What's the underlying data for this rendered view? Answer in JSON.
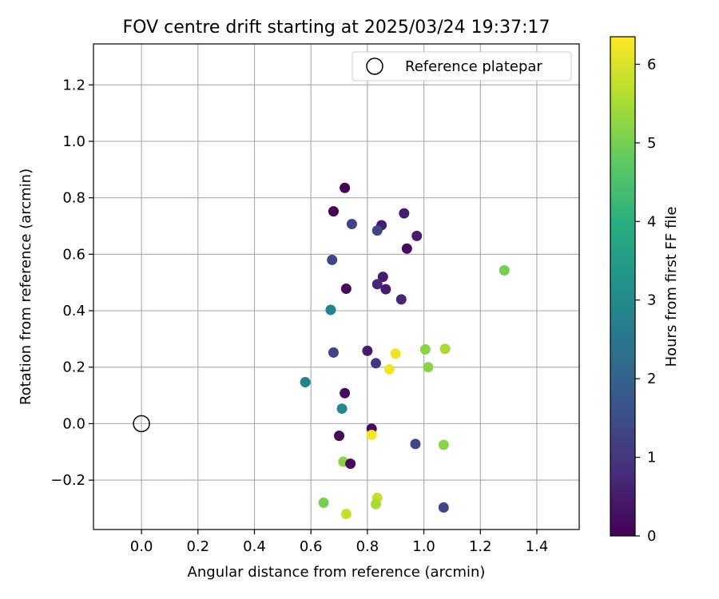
{
  "chart_data": {
    "type": "scatter",
    "title": "FOV centre drift starting at 2025/03/24 19:37:17",
    "xlabel": "Angular distance from reference (arcmin)",
    "ylabel": "Rotation from reference (arcmin)",
    "xlim": [
      -0.17,
      1.55
    ],
    "ylim": [
      -0.375,
      1.345
    ],
    "grid": true,
    "xticks": [
      0.0,
      0.2,
      0.4,
      0.6,
      0.8,
      1.0,
      1.2,
      1.4
    ],
    "xtick_labels": [
      "0.0",
      "0.2",
      "0.4",
      "0.6",
      "0.8",
      "1.0",
      "1.2",
      "1.4"
    ],
    "yticks": [
      -0.2,
      0.0,
      0.2,
      0.4,
      0.6,
      0.8,
      1.0,
      1.2
    ],
    "ytick_labels": [
      "−0.2",
      "0.0",
      "0.2",
      "0.4",
      "0.6",
      "0.8",
      "1.0",
      "1.2"
    ],
    "legend": {
      "position": "top-right",
      "entries": [
        {
          "label": "Reference platepar",
          "marker": "open-circle",
          "color": "#000000"
        }
      ]
    },
    "reference_point": {
      "x": 0.0,
      "y": 0.0
    },
    "colorbar": {
      "label": "Hours from first FF file",
      "min": 0,
      "max": 6.35,
      "colormap": "viridis",
      "ticks": [
        0,
        1,
        2,
        3,
        4,
        5,
        6
      ],
      "tick_labels": [
        "0",
        "1",
        "2",
        "3",
        "4",
        "5",
        "6"
      ]
    },
    "points": [
      {
        "x": 0.72,
        "y": 0.835,
        "hours": 0.0
      },
      {
        "x": 0.68,
        "y": 0.752,
        "hours": 0.0
      },
      {
        "x": 0.745,
        "y": 0.707,
        "hours": 1.3
      },
      {
        "x": 0.85,
        "y": 0.703,
        "hours": 0.5
      },
      {
        "x": 0.93,
        "y": 0.745,
        "hours": 0.5
      },
      {
        "x": 0.835,
        "y": 0.684,
        "hours": 1.3
      },
      {
        "x": 0.975,
        "y": 0.665,
        "hours": 0.5
      },
      {
        "x": 0.94,
        "y": 0.62,
        "hours": 0.2
      },
      {
        "x": 0.675,
        "y": 0.58,
        "hours": 1.3
      },
      {
        "x": 0.855,
        "y": 0.52,
        "hours": 0.5
      },
      {
        "x": 0.725,
        "y": 0.478,
        "hours": 0.2
      },
      {
        "x": 0.835,
        "y": 0.494,
        "hours": 0.7
      },
      {
        "x": 0.865,
        "y": 0.476,
        "hours": 0.5
      },
      {
        "x": 0.92,
        "y": 0.44,
        "hours": 0.7
      },
      {
        "x": 0.67,
        "y": 0.403,
        "hours": 2.8
      },
      {
        "x": 1.285,
        "y": 0.543,
        "hours": 5.0
      },
      {
        "x": 0.68,
        "y": 0.252,
        "hours": 1.3
      },
      {
        "x": 0.8,
        "y": 0.258,
        "hours": 0.5
      },
      {
        "x": 0.9,
        "y": 0.248,
        "hours": 6.2
      },
      {
        "x": 1.005,
        "y": 0.263,
        "hours": 5.2
      },
      {
        "x": 1.075,
        "y": 0.265,
        "hours": 5.5
      },
      {
        "x": 0.83,
        "y": 0.214,
        "hours": 1.0
      },
      {
        "x": 0.878,
        "y": 0.192,
        "hours": 6.2
      },
      {
        "x": 1.015,
        "y": 0.2,
        "hours": 5.2
      },
      {
        "x": 0.58,
        "y": 0.147,
        "hours": 2.8
      },
      {
        "x": 0.72,
        "y": 0.108,
        "hours": 0.2
      },
      {
        "x": 0.71,
        "y": 0.053,
        "hours": 3.0
      },
      {
        "x": 0.815,
        "y": -0.018,
        "hours": 0.2
      },
      {
        "x": 0.7,
        "y": -0.043,
        "hours": 0.2
      },
      {
        "x": 0.815,
        "y": -0.04,
        "hours": 6.3
      },
      {
        "x": 0.97,
        "y": -0.072,
        "hours": 1.3
      },
      {
        "x": 1.07,
        "y": -0.075,
        "hours": 5.2
      },
      {
        "x": 0.715,
        "y": -0.135,
        "hours": 5.2
      },
      {
        "x": 0.74,
        "y": -0.142,
        "hours": 0.2
      },
      {
        "x": 0.645,
        "y": -0.28,
        "hours": 5.0
      },
      {
        "x": 0.835,
        "y": -0.263,
        "hours": 5.8
      },
      {
        "x": 0.83,
        "y": -0.285,
        "hours": 5.5
      },
      {
        "x": 1.07,
        "y": -0.297,
        "hours": 1.3
      },
      {
        "x": 0.725,
        "y": -0.32,
        "hours": 5.8
      }
    ]
  }
}
